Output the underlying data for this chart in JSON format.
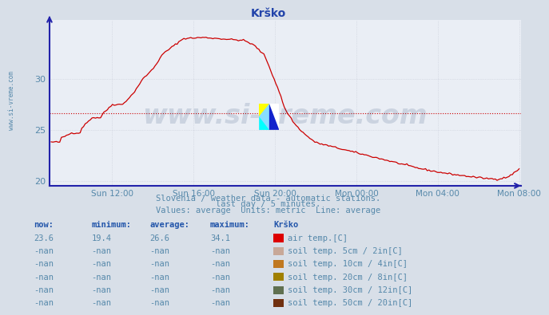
{
  "title": "Krško",
  "bg_color": "#d8dfe8",
  "plot_bg_color": "#eaeef5",
  "grid_color": "#c8cdd8",
  "line_color": "#cc0000",
  "avg_line_color": "#cc0000",
  "avg_line_value": 26.6,
  "axis_color": "#2222aa",
  "text_color": "#5588aa",
  "title_color": "#2244aa",
  "subtitle1": "Slovenia / weather data - automatic stations.",
  "subtitle2": "last day / 5 minutes.",
  "subtitle3": "Values: average  Units: metric  Line: average",
  "watermark": "www.si-vreme.com",
  "ylim": [
    19.5,
    35.8
  ],
  "yticks": [
    20,
    25,
    30
  ],
  "xticklabels": [
    "Sun 12:00",
    "Sun 16:00",
    "Sun 20:00",
    "Mon 00:00",
    "Mon 04:00",
    "Mon 08:00"
  ],
  "legend_items": [
    {
      "label": "air temp.[C]",
      "color": "#dd0000"
    },
    {
      "label": "soil temp. 5cm / 2in[C]",
      "color": "#c8a898"
    },
    {
      "label": "soil temp. 10cm / 4in[C]",
      "color": "#c07820"
    },
    {
      "label": "soil temp. 20cm / 8in[C]",
      "color": "#a08000"
    },
    {
      "label": "soil temp. 30cm / 12in[C]",
      "color": "#607050"
    },
    {
      "label": "soil temp. 50cm / 20in[C]",
      "color": "#703010"
    }
  ],
  "table_headers": [
    "now:",
    "minimum:",
    "average:",
    "maximum:",
    "Krško"
  ],
  "table_row1": [
    "23.6",
    "19.4",
    "26.6",
    "34.1"
  ],
  "table_rows_nan": [
    "-nan",
    "-nan",
    "-nan",
    "-nan"
  ],
  "num_nan_rows": 5,
  "watermark_color": "#1a3a6a",
  "watermark_alpha": 0.15,
  "vert_label": "www.si-vreme.com"
}
